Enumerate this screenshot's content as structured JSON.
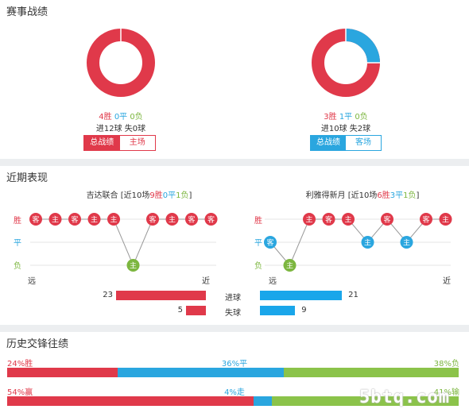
{
  "record": {
    "title": "赛事战绩",
    "home": {
      "wins": "4胜",
      "draws": "0平",
      "losses": "0负",
      "goals": "进12球 失0球",
      "tab_active": "总战绩",
      "tab_other": "主场",
      "win_rate": 1.0
    },
    "away": {
      "wins": "3胜",
      "draws": "1平",
      "losses": "0负",
      "goals": "进10球 失2球",
      "tab_active": "总战绩",
      "tab_other": "客场",
      "win_rate": 0.75
    }
  },
  "recent": {
    "title": "近期表现",
    "row_win": "胜",
    "row_draw": "平",
    "row_loss": "负",
    "far": "远",
    "near": "近",
    "home": {
      "team": "吉达联合",
      "summary_prefix": "[近10场",
      "wins": "9胜",
      "draws": "0平",
      "losses": "1负",
      "summary_suffix": "]",
      "results": [
        "W",
        "W",
        "W",
        "W",
        "W",
        "L",
        "W",
        "W",
        "W",
        "W"
      ],
      "venues": [
        "客",
        "主",
        "客",
        "主",
        "主",
        "主",
        "客",
        "主",
        "客",
        "客"
      ]
    },
    "away": {
      "team": "利雅得新月",
      "summary_prefix": "[近10场",
      "wins": "6胜",
      "draws": "3平",
      "losses": "1负",
      "summary_suffix": "]",
      "results": [
        "D",
        "L",
        "W",
        "W",
        "W",
        "D",
        "W",
        "D",
        "W",
        "W"
      ],
      "venues": [
        "客",
        "主",
        "主",
        "客",
        "主",
        "主",
        "客",
        "主",
        "客",
        "主"
      ]
    },
    "goals_for_label": "进球",
    "goals_against_label": "失球",
    "home_goals_for": 23,
    "home_goals_against": 5,
    "away_goals_for": 21,
    "away_goals_against": 9
  },
  "history": {
    "title": "历史交锋往绩",
    "row1": {
      "win": "24%胜",
      "draw": "36%平",
      "loss": "38%负",
      "win_pct": 24,
      "draw_pct": 36,
      "loss_pct": 38
    },
    "row2": {
      "win": "54%赢",
      "draw": "4%走",
      "loss": "41%输",
      "win_pct": 54,
      "draw_pct": 4,
      "loss_pct": 41
    }
  },
  "watermark": "5btq.com",
  "colors": {
    "win": "#e0394a",
    "draw": "#2aa6df",
    "loss": "#7cb63f"
  }
}
